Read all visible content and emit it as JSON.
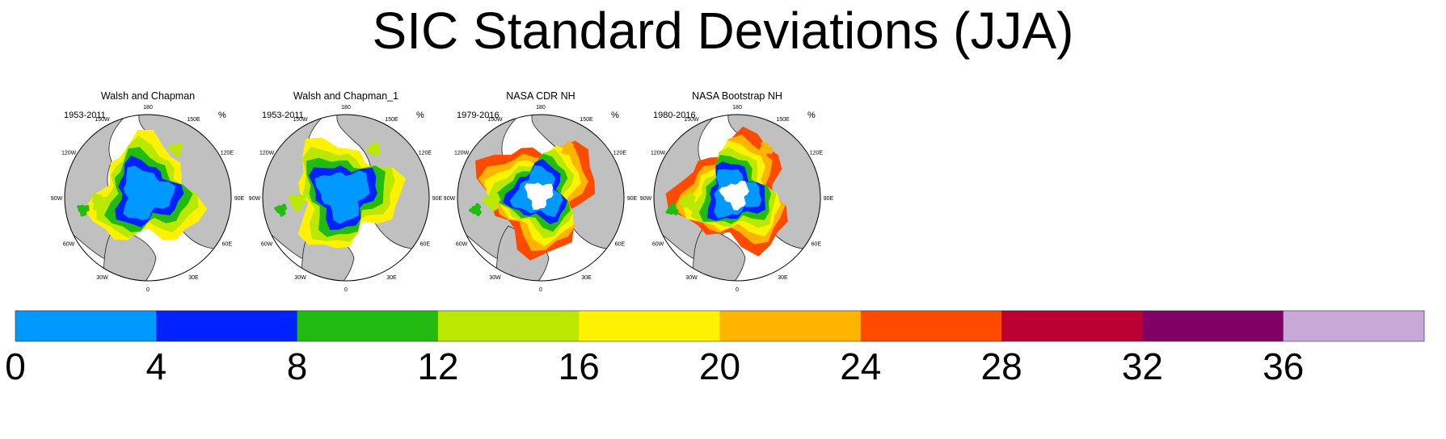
{
  "title": "SIC Standard Deviations (JJA)",
  "chart_data": {
    "type": "heatmap",
    "title": "SIC Standard Deviations (JJA)",
    "units": "%",
    "projection": "north polar stereographic",
    "longitude_labels": [
      "180",
      "150E",
      "120E",
      "90E",
      "60E",
      "30E",
      "0",
      "30W",
      "60W",
      "90W",
      "120W",
      "150W"
    ],
    "panels": [
      {
        "title": "Walsh and Chapman",
        "period": "1953-2011",
        "units": "%"
      },
      {
        "title": "Walsh and Chapman_1",
        "period": "1953-2011",
        "units": "%"
      },
      {
        "title": "NASA CDR NH",
        "period": "1979-2016",
        "units": "%"
      },
      {
        "title": "NASA Bootstrap NH",
        "period": "1980-2016",
        "units": "%"
      }
    ],
    "colorbar": {
      "levels": [
        0,
        4,
        8,
        12,
        16,
        20,
        24,
        28,
        32,
        36,
        40
      ],
      "tick_labels": [
        "0",
        "4",
        "8",
        "12",
        "16",
        "20",
        "24",
        "28",
        "32",
        "36"
      ],
      "colors": [
        "#0099ff",
        "#0022ff",
        "#22bb11",
        "#bbe800",
        "#fff200",
        "#ffb500",
        "#ff4a00",
        "#bb0033",
        "#800066",
        "#c7a8d8"
      ]
    }
  }
}
